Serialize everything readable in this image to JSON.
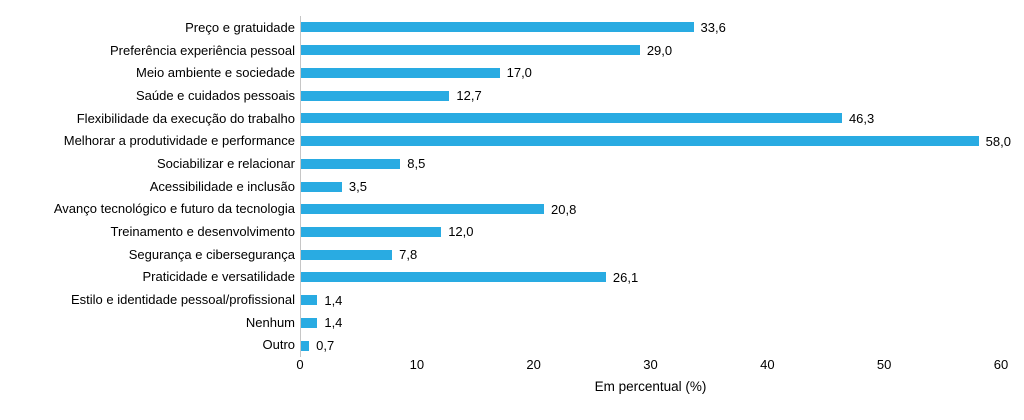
{
  "chart_data": {
    "type": "bar",
    "orientation": "horizontal",
    "categories": [
      "Preço e gratuidade",
      "Preferência experiência pessoal",
      "Meio ambiente e sociedade",
      "Saúde e cuidados pessoais",
      "Flexibilidade da execução do trabalho",
      "Melhorar a produtividade e performance",
      "Sociabilizar e relacionar",
      "Acessibilidade e inclusão",
      "Avanço tecnológico e futuro da tecnologia",
      "Treinamento e desenvolvimento",
      "Segurança e cibersegurança",
      "Praticidade e versatilidade",
      "Estilo e identidade pessoal/profissional",
      "Nenhum",
      "Outro"
    ],
    "values": [
      33.6,
      29.0,
      17.0,
      12.7,
      46.3,
      58.0,
      8.5,
      3.5,
      20.8,
      12.0,
      7.8,
      26.1,
      1.4,
      1.4,
      0.7
    ],
    "value_labels": [
      "33,6",
      "29,0",
      "17,0",
      "12,7",
      "46,3",
      "58,0",
      "8,5",
      "3,5",
      "20,8",
      "12,0",
      "7,8",
      "26,1",
      "1,4",
      "1,4",
      "0,7"
    ],
    "xlabel": "Em percentual (%)",
    "xlim": [
      0,
      60
    ],
    "x_ticks": [
      0,
      10,
      20,
      30,
      40,
      50,
      60
    ],
    "x_tick_labels": [
      "0",
      "10",
      "20",
      "30",
      "40",
      "50",
      "60"
    ],
    "bar_color": "#29abe2",
    "axis_line_color": "#c6c6c6",
    "text_color": "#000000",
    "grid": false,
    "legend": false
  }
}
